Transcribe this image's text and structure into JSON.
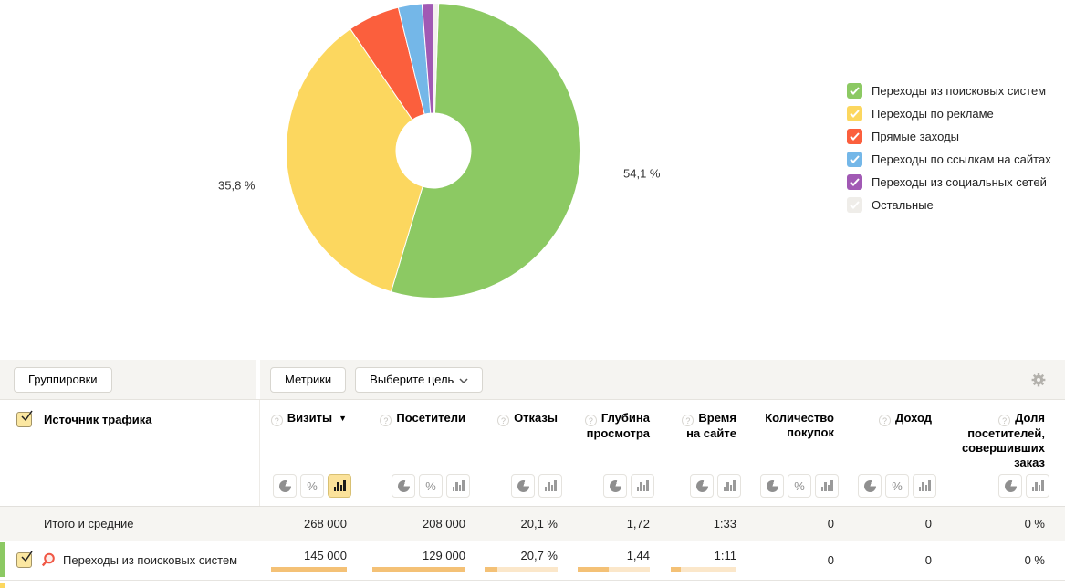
{
  "chart_data": {
    "type": "pie",
    "donut": true,
    "start_angle_deg": 2,
    "slices": [
      {
        "label": "Переходы из поисковых систем",
        "pct": 54.1,
        "pct_label": "54,1 %",
        "color": "#8cc963"
      },
      {
        "label": "Переходы по рекламе",
        "pct": 35.8,
        "pct_label": "35,8 %",
        "color": "#fcd75f"
      },
      {
        "label": "Прямые заходы",
        "pct": 5.7,
        "color": "#fb5f3d"
      },
      {
        "label": "Переходы по ссылкам на сайтах",
        "pct": 2.6,
        "color": "#74b7e8"
      },
      {
        "label": "Переходы из социальных сетей",
        "pct": 1.2,
        "color": "#a159b4"
      },
      {
        "label": "Остальные",
        "pct": 0.6,
        "color": "#f3f1ee"
      }
    ],
    "legend_position": "right"
  },
  "legend": {
    "items": [
      {
        "label": "Переходы из поисковых систем",
        "color": "#8cc963",
        "checked": true
      },
      {
        "label": "Переходы по рекламе",
        "color": "#fcd75f",
        "checked": true
      },
      {
        "label": "Прямые заходы",
        "color": "#fb5f3d",
        "checked": true
      },
      {
        "label": "Переходы по ссылкам на сайтах",
        "color": "#74b7e8",
        "checked": true
      },
      {
        "label": "Переходы из социальных сетей",
        "color": "#a159b4",
        "checked": true
      },
      {
        "label": "Остальные",
        "color": "#efede9",
        "checked": true
      }
    ]
  },
  "toolbar": {
    "groupings_label": "Группировки",
    "metrics_label": "Метрики",
    "goal_label": "Выберите цель"
  },
  "table": {
    "dimension_header": "Источник трафика",
    "columns": [
      {
        "label_lines": [
          "Визиты"
        ],
        "help": true,
        "sorted": true,
        "modes": [
          "pie",
          "percent",
          "bars"
        ],
        "active_mode": "bars"
      },
      {
        "label_lines": [
          "Посетители"
        ],
        "help": true,
        "modes": [
          "pie",
          "percent",
          "bars"
        ]
      },
      {
        "label_lines": [
          "Отказы"
        ],
        "help": true,
        "modes": [
          "pie",
          "bars"
        ]
      },
      {
        "label_lines": [
          "Глубина",
          "просмотра"
        ],
        "help": true,
        "modes": [
          "pie",
          "bars"
        ]
      },
      {
        "label_lines": [
          "Время",
          "на сайте"
        ],
        "help": true,
        "modes": [
          "pie",
          "bars"
        ]
      },
      {
        "label_lines": [
          "Количество",
          "покупок"
        ],
        "help": false,
        "modes": [
          "pie",
          "percent",
          "bars"
        ]
      },
      {
        "label_lines": [
          "Доход"
        ],
        "help": true,
        "modes": [
          "pie",
          "percent",
          "bars"
        ]
      },
      {
        "label_lines": [
          "Доля",
          "посетителей,",
          "совершивших",
          "заказ"
        ],
        "help": true,
        "modes": [
          "pie",
          "bars"
        ]
      }
    ],
    "totals_row": {
      "label": "Итого и средние",
      "values": [
        "268 000",
        "208 000",
        "20,1 %",
        "1,72",
        "1:33",
        "0",
        "0",
        "0 %"
      ]
    },
    "rows": [
      {
        "label": "Переходы из поисковых систем",
        "checked": true,
        "strip_color": "#8cc963",
        "values": [
          "145 000",
          "129 000",
          "20,7 %",
          "1,44",
          "1:11",
          "0",
          "0",
          "0 %"
        ],
        "bar_fills": [
          1,
          1,
          0.17,
          0.43,
          0.15,
          null,
          null,
          null
        ]
      }
    ],
    "next_row_strip_color": "#fcd75f"
  }
}
